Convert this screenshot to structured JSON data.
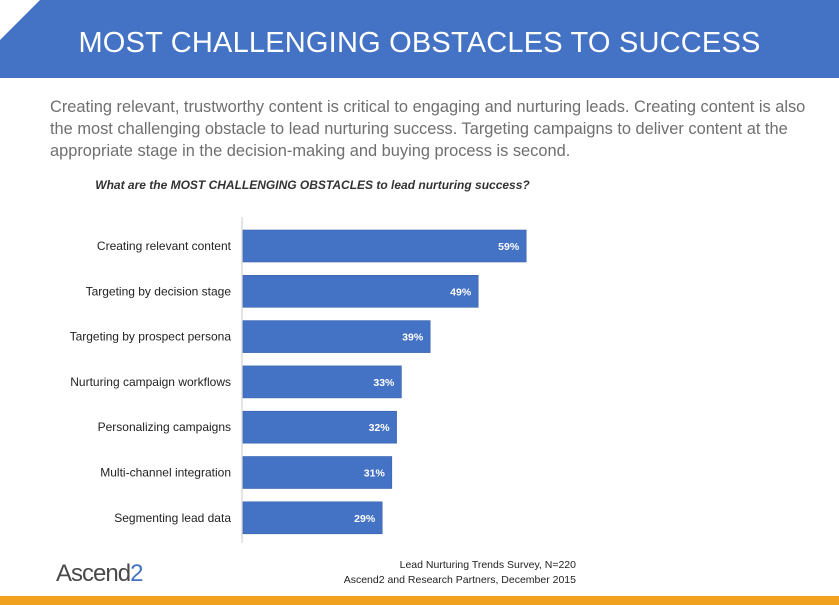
{
  "header": {
    "title": "MOST CHALLENGING OBSTACLES TO SUCCESS"
  },
  "intro": {
    "text": "Creating relevant, trustworthy content is critical to engaging and nurturing leads. Creating content is also the most challenging obstacle to lead nurturing success. Targeting campaigns to deliver content at the appropriate stage in the decision-making and buying process is second."
  },
  "chart_data": {
    "type": "bar",
    "orientation": "horizontal",
    "title": "What are the MOST CHALLENGING OBSTACLES to lead nurturing success?",
    "categories": [
      "Creating relevant content",
      "Targeting by decision stage",
      "Targeting by prospect persona",
      "Nurturing campaign workflows",
      "Personalizing campaigns",
      "Multi-channel integration",
      "Segmenting lead data"
    ],
    "values": [
      59,
      49,
      39,
      33,
      32,
      31,
      29
    ],
    "value_labels": [
      "59%",
      "49%",
      "39%",
      "33%",
      "32%",
      "31%",
      "29%"
    ],
    "xlim": [
      0,
      100
    ],
    "unit": "%",
    "grid": false,
    "bar_color": "#4472c4"
  },
  "footer": {
    "source_line1": "Lead Nurturing Trends Survey, N=220",
    "source_line2": "Ascend2 and Research Partners, December 2015",
    "logo_main": "Ascend",
    "logo_digit": "2"
  },
  "colors": {
    "banner": "#4472c4",
    "accent_bar": "#f0a11e",
    "bar": "#4472c4"
  }
}
